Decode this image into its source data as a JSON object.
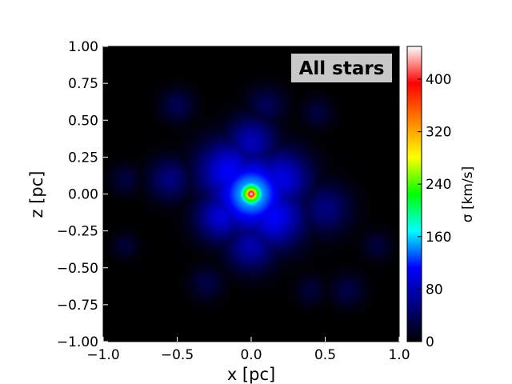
{
  "chart_data": {
    "type": "heatmap",
    "panel_label": "All stars",
    "xlabel": "x [pc]",
    "ylabel": "z [pc]",
    "colorbar_label": "σ [km/s]",
    "xlim": [
      -1.0,
      1.0
    ],
    "ylim": [
      -1.0,
      1.0
    ],
    "x_ticks": [
      "−1.0",
      "−0.5",
      "0.0",
      "0.5",
      "1.0"
    ],
    "x_tick_values": [
      -1.0,
      -0.5,
      0.0,
      0.5,
      1.0
    ],
    "y_ticks": [
      "1.00",
      "0.75",
      "0.50",
      "0.25",
      "0.00",
      "−0.25",
      "−0.50",
      "−0.75",
      "−1.00"
    ],
    "y_tick_values": [
      1.0,
      0.75,
      0.5,
      0.25,
      0.0,
      -0.25,
      -0.5,
      -0.75,
      -1.0
    ],
    "colorbar_range": [
      0,
      450
    ],
    "colorbar_ticks": [
      "0",
      "80",
      "160",
      "240",
      "320",
      "400"
    ],
    "colorbar_tick_values": [
      0,
      80,
      160,
      240,
      320,
      400
    ],
    "colormap": [
      "#000000",
      "#000080",
      "#0000ff",
      "#00ffff",
      "#00ff00",
      "#ffff00",
      "#ff8000",
      "#ff0000",
      "#ffffff"
    ],
    "background_value": 0,
    "blobs": [
      {
        "x": 0.0,
        "y": 0.0,
        "sigma": 450,
        "r": 0.03
      },
      {
        "x": 0.0,
        "y": 0.0,
        "sigma": 300,
        "r": 0.06
      },
      {
        "x": 0.0,
        "y": 0.0,
        "sigma": 160,
        "r": 0.18
      },
      {
        "x": -0.15,
        "y": 0.15,
        "sigma": 110,
        "r": 0.15
      },
      {
        "x": 0.15,
        "y": -0.15,
        "sigma": 110,
        "r": 0.15
      },
      {
        "x": 0.2,
        "y": 0.1,
        "sigma": 100,
        "r": 0.14
      },
      {
        "x": -0.2,
        "y": -0.15,
        "sigma": 95,
        "r": 0.12
      },
      {
        "x": 0.0,
        "y": 0.35,
        "sigma": 80,
        "r": 0.12
      },
      {
        "x": 0.0,
        "y": -0.35,
        "sigma": 75,
        "r": 0.12
      },
      {
        "x": -0.55,
        "y": 0.1,
        "sigma": 55,
        "r": 0.1
      },
      {
        "x": 0.5,
        "y": -0.1,
        "sigma": 55,
        "r": 0.12
      },
      {
        "x": -0.5,
        "y": 0.6,
        "sigma": 35,
        "r": 0.08
      },
      {
        "x": 0.1,
        "y": 0.6,
        "sigma": 38,
        "r": 0.09
      },
      {
        "x": 0.45,
        "y": 0.55,
        "sigma": 28,
        "r": 0.07
      },
      {
        "x": -0.85,
        "y": 0.1,
        "sigma": 28,
        "r": 0.07
      },
      {
        "x": -0.85,
        "y": -0.35,
        "sigma": 25,
        "r": 0.06
      },
      {
        "x": 0.65,
        "y": -0.65,
        "sigma": 30,
        "r": 0.08
      },
      {
        "x": 0.4,
        "y": -0.65,
        "sigma": 25,
        "r": 0.07
      },
      {
        "x": -0.3,
        "y": -0.6,
        "sigma": 30,
        "r": 0.08
      },
      {
        "x": 0.85,
        "y": -0.35,
        "sigma": 25,
        "r": 0.07
      }
    ]
  }
}
